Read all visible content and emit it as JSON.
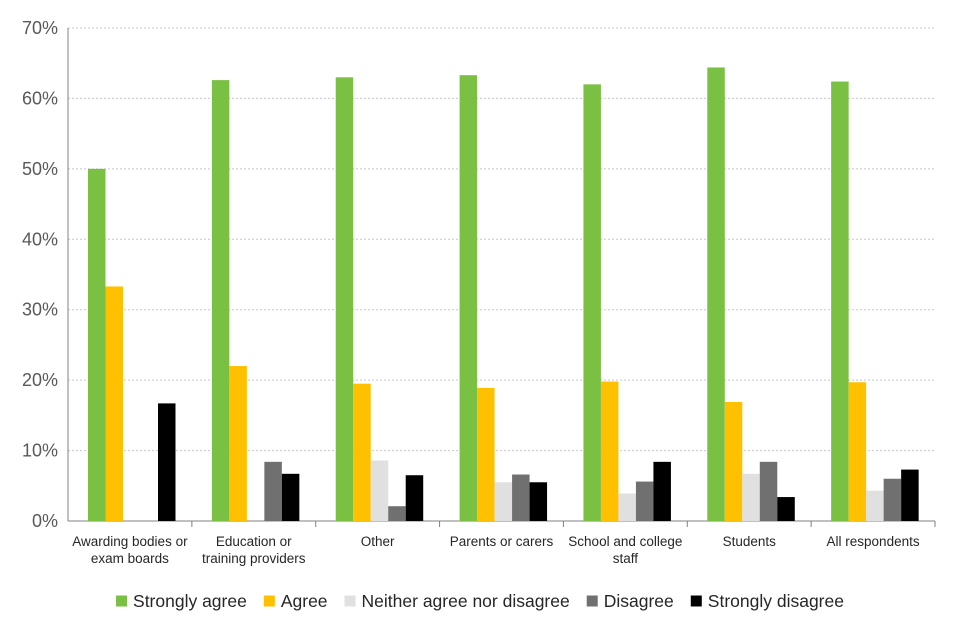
{
  "chart_data": {
    "type": "bar",
    "title": "",
    "xlabel": "",
    "ylabel": "",
    "ylim": [
      0,
      70
    ],
    "y_ticks": [
      "0%",
      "10%",
      "20%",
      "30%",
      "40%",
      "50%",
      "60%",
      "70%"
    ],
    "y_tick_values": [
      0,
      10,
      20,
      30,
      40,
      50,
      60,
      70
    ],
    "grid": true,
    "legend_position": "bottom",
    "categories": [
      [
        "Awarding bodies or",
        "exam boards"
      ],
      [
        "Education or",
        "training providers"
      ],
      [
        "Other"
      ],
      [
        "Parents or carers"
      ],
      [
        "School and college",
        "staff"
      ],
      [
        "Students"
      ],
      [
        "All respondents"
      ]
    ],
    "series": [
      {
        "name": "Strongly agree",
        "color": "#7AC143",
        "values": [
          50.0,
          62.6,
          63.0,
          63.3,
          62.0,
          64.4,
          62.4
        ]
      },
      {
        "name": "Agree",
        "color": "#FFC000",
        "values": [
          33.3,
          22.0,
          19.5,
          18.9,
          19.8,
          16.9,
          19.7
        ]
      },
      {
        "name": "Neither agree nor disagree",
        "color": "#E0E0E0",
        "values": [
          0,
          0,
          8.6,
          5.5,
          3.9,
          6.7,
          4.3
        ]
      },
      {
        "name": "Disagree",
        "color": "#707070",
        "values": [
          0,
          8.4,
          2.1,
          6.6,
          5.6,
          8.4,
          6.0
        ]
      },
      {
        "name": "Strongly disagree",
        "color": "#000000",
        "values": [
          16.7,
          6.7,
          6.5,
          5.5,
          8.4,
          3.4,
          7.3
        ]
      }
    ]
  }
}
